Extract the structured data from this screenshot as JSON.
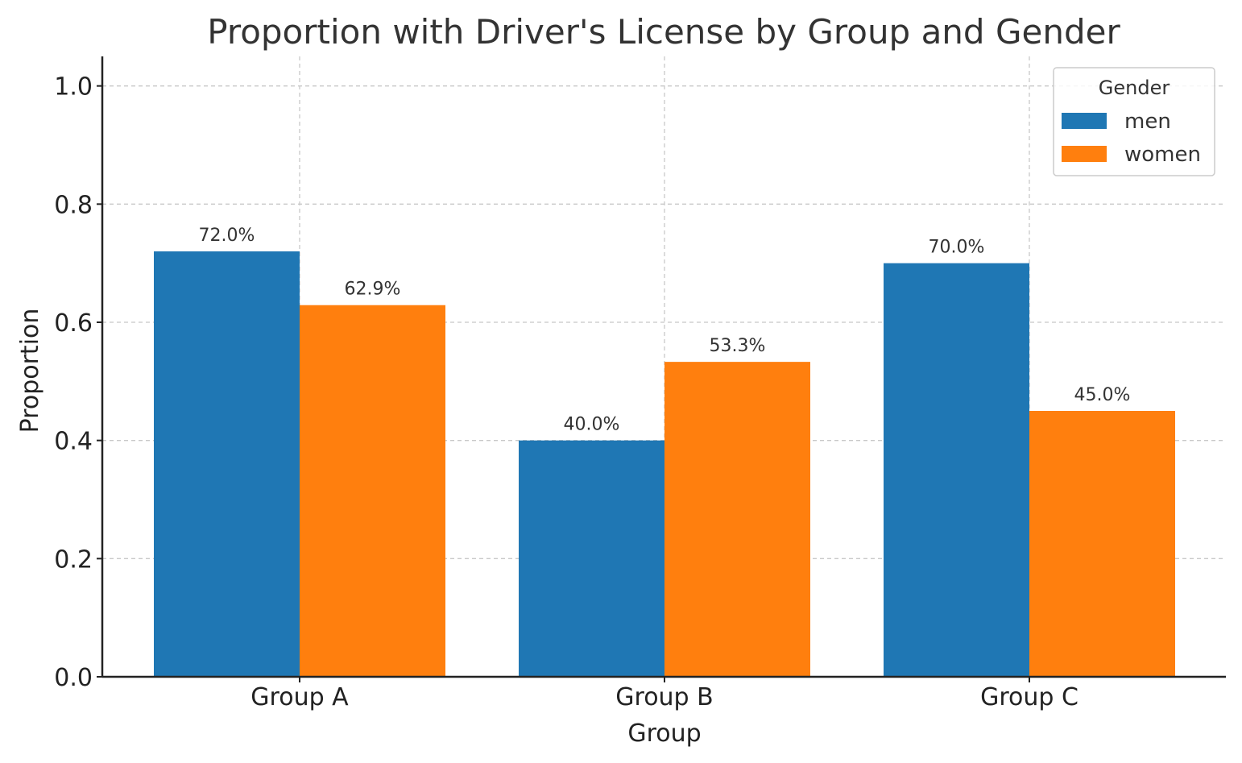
{
  "chart_data": {
    "type": "bar",
    "title": "Proportion with Driver's License by Group and Gender",
    "xlabel": "Group",
    "ylabel": "Proportion",
    "categories": [
      "Group A",
      "Group B",
      "Group C"
    ],
    "series": [
      {
        "name": "men",
        "color": "#1f77b4",
        "values": [
          0.72,
          0.4,
          0.7
        ],
        "labels": [
          "72.0%",
          "40.0%",
          "70.0%"
        ]
      },
      {
        "name": "women",
        "color": "#ff7f0e",
        "values": [
          0.629,
          0.533,
          0.45
        ],
        "labels": [
          "62.9%",
          "53.3%",
          "45.0%"
        ]
      }
    ],
    "ylim": [
      0,
      1.05
    ],
    "yticks": [
      0.0,
      0.2,
      0.4,
      0.6,
      0.8,
      1.0
    ],
    "ytick_labels": [
      "0.0",
      "0.2",
      "0.4",
      "0.6",
      "0.8",
      "1.0"
    ],
    "grid": true,
    "legend": {
      "title": "Gender",
      "placement": "top-right"
    }
  }
}
